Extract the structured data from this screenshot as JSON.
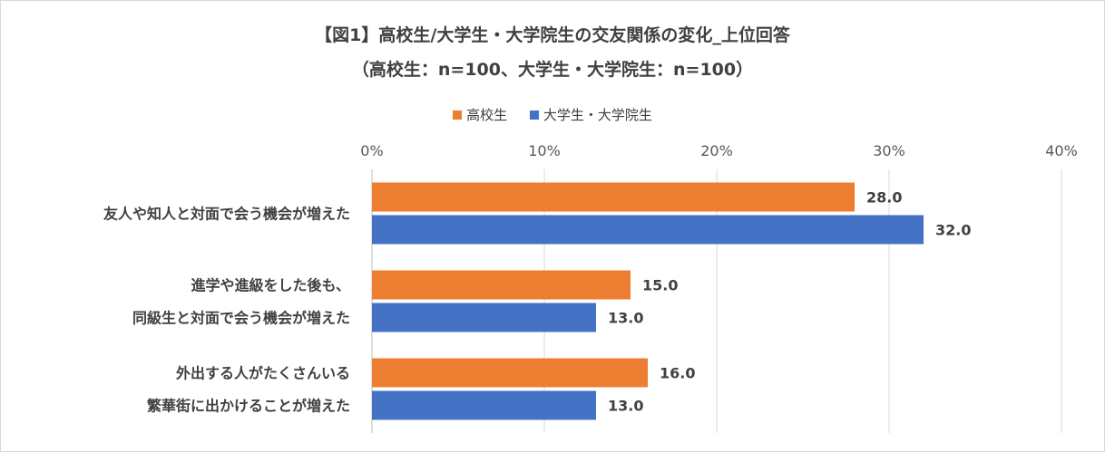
{
  "chart_data": {
    "type": "bar",
    "orientation": "horizontal",
    "title": "【図1】高校生/大学生・大学院生の交友関係の変化_上位回答",
    "subtitle": "（高校生：n=100、大学生・大学院生：n=100）",
    "categories": [
      [
        "友人や知人と対面で会う機会が増えた"
      ],
      [
        "進学や進級をした後も、",
        "同級生と対面で会う機会が増えた"
      ],
      [
        "外出する人がたくさんいる",
        "繁華街に出かけることが増えた"
      ]
    ],
    "series": [
      {
        "name": "高校生",
        "color": "#ed7d31",
        "values": [
          28.0,
          15.0,
          16.0
        ]
      },
      {
        "name": "大学生・大学院生",
        "color": "#4472c4",
        "values": [
          32.0,
          13.0,
          13.0
        ]
      }
    ],
    "xlim": [
      0,
      40
    ],
    "xticks": [
      0,
      10,
      20,
      30,
      40
    ],
    "tick_suffix": "%",
    "grid": true,
    "legend_position": "top"
  }
}
